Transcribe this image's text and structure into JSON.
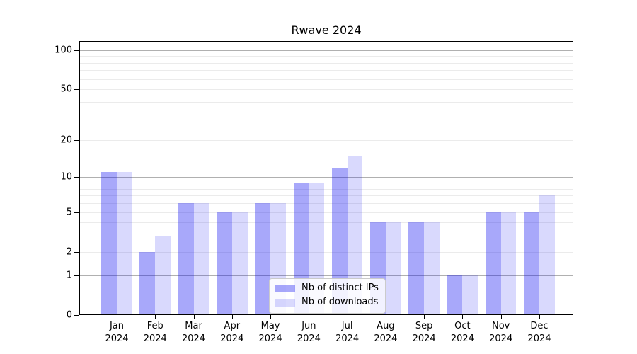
{
  "chart_data": {
    "type": "bar",
    "title": "Rwave 2024",
    "categories": [
      "Jan",
      "Feb",
      "Mar",
      "Apr",
      "May",
      "Jun",
      "Jul",
      "Aug",
      "Sep",
      "Oct",
      "Nov",
      "Dec"
    ],
    "x_tick_second_line": "2024",
    "series": [
      {
        "name": "Nb of distinct IPs",
        "color": "rgba(13,13,242,0.36)",
        "values": [
          11,
          2,
          6,
          5,
          6,
          9,
          12,
          4,
          4,
          1,
          5,
          5
        ]
      },
      {
        "name": "Nb of downloads",
        "color": "rgba(13,13,242,0.155)",
        "values": [
          11,
          3,
          6,
          5,
          6,
          9,
          15,
          4,
          4,
          1,
          5,
          7
        ]
      }
    ],
    "y_axis": {
      "scale": "log1p",
      "tick_labels": [
        0,
        1,
        2,
        5,
        10,
        20,
        50,
        100
      ],
      "major_gridlines": [
        1,
        10,
        100
      ],
      "minor_gridlines": [
        2,
        3,
        4,
        5,
        6,
        7,
        8,
        9,
        20,
        30,
        40,
        50,
        60,
        70,
        80,
        90
      ],
      "top_value": 117
    },
    "legend_position": "lower center",
    "grid": true,
    "colors": {
      "major_grid": "#b0b0b0",
      "minor_grid": "#ebebeb",
      "axis": "#000000",
      "background": "#ffffff"
    }
  }
}
